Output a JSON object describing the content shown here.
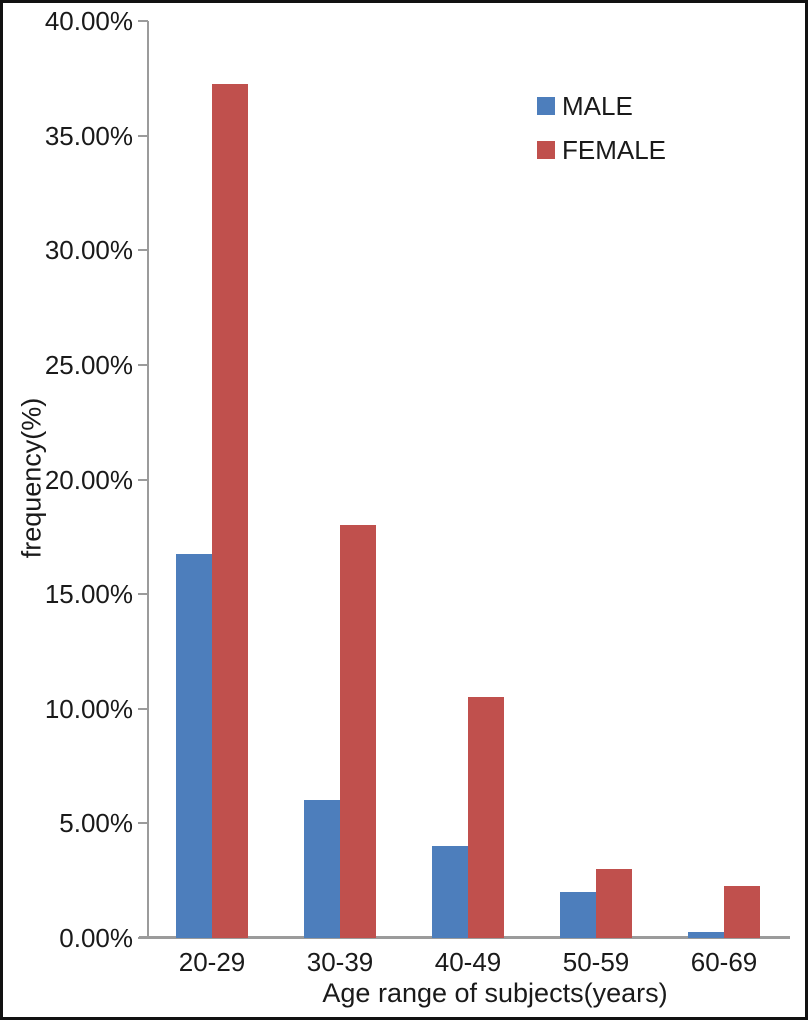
{
  "chart_data": {
    "type": "bar",
    "categories": [
      "20-29",
      "30-39",
      "40-49",
      "50-59",
      "60-69"
    ],
    "series": [
      {
        "name": "MALE",
        "color": "#4d7ebc",
        "values": [
          16.75,
          6.0,
          4.0,
          2.0,
          0.25
        ]
      },
      {
        "name": "FEMALE",
        "color": "#c0504d",
        "values": [
          37.25,
          18.0,
          10.5,
          3.0,
          2.25
        ]
      }
    ],
    "title": "",
    "xlabel": "Age range of subjects(years)",
    "ylabel": "frequency(%)",
    "ylim": [
      0,
      40
    ],
    "ytick_step": 5,
    "ytick_labels": [
      "0.00%",
      "5.00%",
      "10.00%",
      "15.00%",
      "20.00%",
      "25.00%",
      "30.00%",
      "35.00%",
      "40.00%"
    ],
    "grid": false,
    "legend_position": "top-right",
    "axis_color": "#9b9b9b",
    "text_color": "#1a1a1a",
    "frame_color": "#111111"
  }
}
